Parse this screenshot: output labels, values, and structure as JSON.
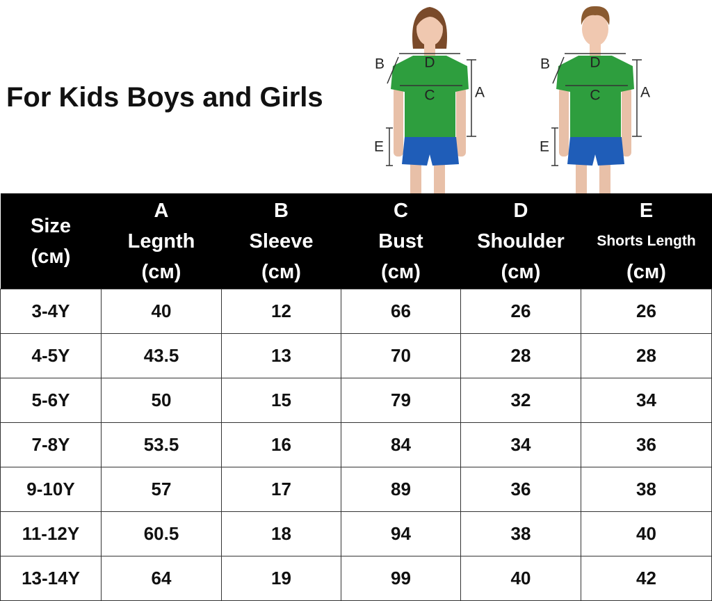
{
  "header": {
    "title": "For Kids Boys and Girls"
  },
  "figures": [
    {
      "labels": {
        "b": "B",
        "d": "D",
        "c": "C",
        "a": "A",
        "e": "E"
      }
    },
    {
      "labels": {
        "b": "B",
        "d": "D",
        "c": "C",
        "a": "A",
        "e": "E"
      }
    }
  ],
  "table": {
    "columns": [
      {
        "name": "Size",
        "unit": "(cм)"
      },
      {
        "letter": "A",
        "name": "Legnth",
        "unit": "(cм)"
      },
      {
        "letter": "B",
        "name": "Sleeve",
        "unit": "(cм)"
      },
      {
        "letter": "C",
        "name": "Bust",
        "unit": "(cм)"
      },
      {
        "letter": "D",
        "name": "Shoulder",
        "unit": "(cм)"
      },
      {
        "letter": "E",
        "name": "Shorts Length",
        "unit": "(cм)"
      }
    ],
    "rows": [
      [
        "3-4Y",
        40,
        12,
        66,
        26,
        26
      ],
      [
        "4-5Y",
        43.5,
        13,
        70,
        28,
        28
      ],
      [
        "5-6Y",
        50,
        15,
        79,
        32,
        34
      ],
      [
        "7-8Y",
        53.5,
        16,
        84,
        34,
        36
      ],
      [
        "9-10Y",
        57,
        17,
        89,
        36,
        38
      ],
      [
        "11-12Y",
        60.5,
        18,
        94,
        38,
        40
      ],
      [
        "13-14Y",
        64,
        19,
        99,
        40,
        42
      ]
    ]
  }
}
